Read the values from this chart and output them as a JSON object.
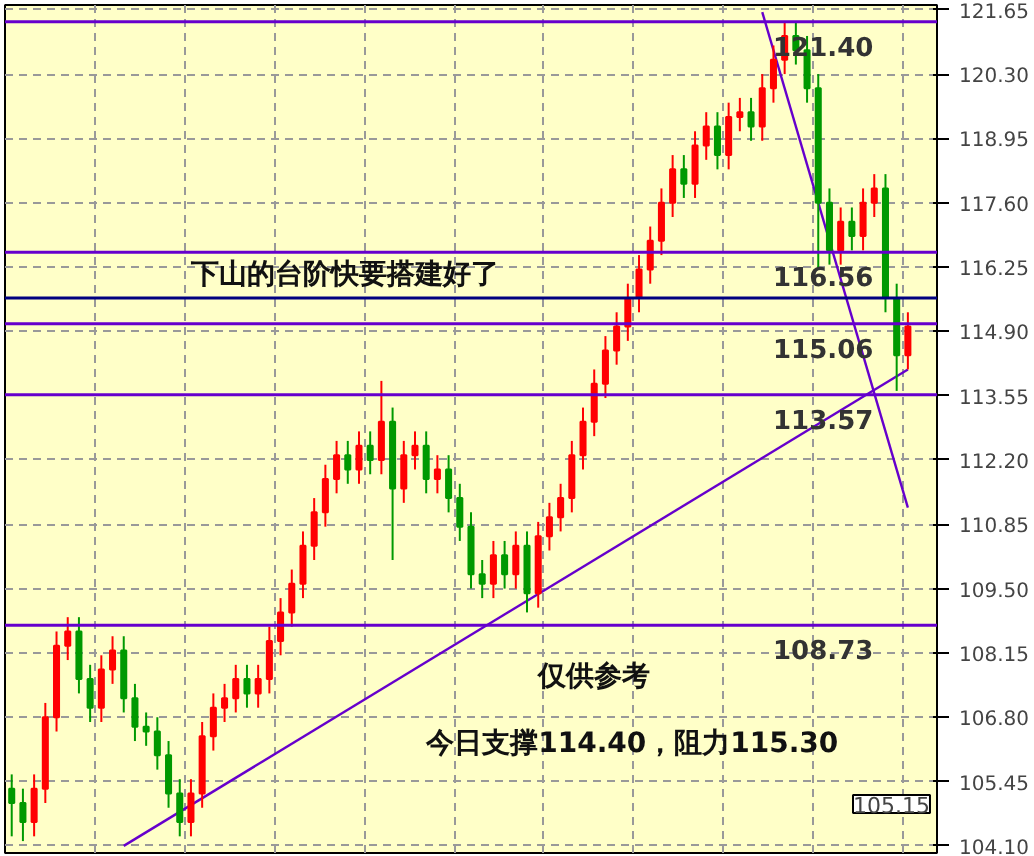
{
  "chart_data": {
    "type": "candlestick",
    "categories": [
      null,
      null,
      null,
      null,
      null,
      null,
      null,
      null,
      null,
      null,
      null,
      null,
      null,
      null,
      null,
      null,
      null,
      null,
      null,
      null,
      null,
      null,
      null,
      null,
      null,
      null,
      null,
      null,
      null,
      null,
      null,
      null,
      null,
      null,
      null,
      null,
      null,
      null,
      null,
      null,
      null,
      null,
      null,
      null,
      null,
      null,
      null,
      null,
      null,
      null,
      null,
      null,
      null,
      null,
      null,
      null,
      null,
      null,
      null,
      null,
      null,
      null,
      null,
      null,
      null,
      null,
      null,
      null,
      null,
      null,
      null,
      null,
      null,
      null,
      null,
      null,
      null,
      null,
      null,
      null,
      null
    ],
    "ohlc": [
      [
        105.3,
        105.6,
        104.3,
        105.0
      ],
      [
        105.0,
        105.3,
        104.2,
        104.6
      ],
      [
        104.6,
        105.6,
        104.3,
        105.3
      ],
      [
        105.3,
        107.1,
        105.0,
        106.8
      ],
      [
        106.8,
        108.6,
        106.5,
        108.3
      ],
      [
        108.3,
        108.9,
        108.0,
        108.6
      ],
      [
        108.6,
        108.9,
        107.3,
        107.6
      ],
      [
        107.6,
        107.9,
        106.7,
        107.0
      ],
      [
        107.0,
        108.1,
        106.7,
        107.8
      ],
      [
        107.8,
        108.5,
        107.5,
        108.2
      ],
      [
        108.2,
        108.5,
        106.9,
        107.2
      ],
      [
        107.2,
        107.5,
        106.3,
        106.6
      ],
      [
        106.6,
        106.9,
        106.2,
        106.5
      ],
      [
        106.5,
        106.8,
        105.7,
        106.0
      ],
      [
        106.0,
        106.3,
        104.9,
        105.2
      ],
      [
        105.2,
        105.5,
        104.3,
        104.6
      ],
      [
        104.6,
        105.5,
        104.3,
        105.2
      ],
      [
        105.2,
        106.7,
        104.9,
        106.4
      ],
      [
        106.4,
        107.3,
        106.1,
        107.0
      ],
      [
        107.0,
        107.5,
        106.7,
        107.2
      ],
      [
        107.2,
        107.9,
        106.9,
        107.6
      ],
      [
        107.6,
        107.9,
        107.0,
        107.3
      ],
      [
        107.3,
        107.9,
        107.0,
        107.6
      ],
      [
        107.6,
        108.7,
        107.3,
        108.4
      ],
      [
        108.4,
        109.3,
        108.1,
        109.0
      ],
      [
        109.0,
        109.9,
        108.7,
        109.6
      ],
      [
        109.6,
        110.7,
        109.3,
        110.4
      ],
      [
        110.4,
        111.4,
        110.1,
        111.1
      ],
      [
        111.1,
        112.1,
        110.8,
        111.8
      ],
      [
        111.8,
        112.6,
        111.5,
        112.3
      ],
      [
        112.3,
        112.6,
        111.7,
        112.0
      ],
      [
        112.0,
        112.8,
        111.7,
        112.5
      ],
      [
        112.5,
        112.8,
        111.9,
        112.2
      ],
      [
        112.2,
        113.86,
        111.9,
        113.0
      ],
      [
        113.0,
        113.3,
        110.1,
        111.6
      ],
      [
        111.6,
        112.6,
        111.3,
        112.3
      ],
      [
        112.3,
        112.8,
        112.0,
        112.5
      ],
      [
        112.5,
        112.8,
        111.5,
        111.8
      ],
      [
        111.8,
        112.3,
        111.5,
        112.0
      ],
      [
        112.0,
        112.3,
        111.1,
        111.4
      ],
      [
        111.4,
        111.7,
        110.5,
        110.8
      ],
      [
        110.8,
        111.1,
        109.5,
        109.8
      ],
      [
        109.8,
        110.1,
        109.3,
        109.6
      ],
      [
        109.6,
        110.5,
        109.3,
        110.2
      ],
      [
        110.2,
        110.5,
        109.5,
        109.8
      ],
      [
        109.8,
        110.7,
        109.5,
        110.4
      ],
      [
        110.4,
        110.7,
        109.0,
        109.4
      ],
      [
        109.4,
        110.9,
        109.1,
        110.6
      ],
      [
        110.6,
        111.3,
        110.3,
        111.0
      ],
      [
        111.0,
        111.7,
        110.7,
        111.4
      ],
      [
        111.4,
        112.6,
        111.1,
        112.3
      ],
      [
        112.3,
        113.3,
        112.0,
        113.0
      ],
      [
        113.0,
        114.1,
        112.7,
        113.8
      ],
      [
        113.8,
        114.8,
        113.5,
        114.5
      ],
      [
        114.5,
        115.3,
        114.2,
        115.0
      ],
      [
        115.0,
        115.9,
        114.7,
        115.6
      ],
      [
        115.6,
        116.5,
        115.3,
        116.2
      ],
      [
        116.2,
        117.1,
        115.9,
        116.8
      ],
      [
        116.8,
        117.9,
        116.5,
        117.6
      ],
      [
        117.6,
        118.6,
        117.3,
        118.3
      ],
      [
        118.3,
        118.6,
        117.7,
        118.0
      ],
      [
        118.0,
        119.1,
        117.7,
        118.8
      ],
      [
        118.8,
        119.5,
        118.5,
        119.2
      ],
      [
        119.2,
        119.5,
        118.3,
        118.6
      ],
      [
        118.6,
        119.7,
        118.3,
        119.4
      ],
      [
        119.4,
        119.8,
        119.1,
        119.5
      ],
      [
        119.5,
        119.8,
        118.9,
        119.2
      ],
      [
        119.2,
        120.3,
        118.9,
        120.0
      ],
      [
        120.0,
        120.9,
        119.7,
        120.6
      ],
      [
        120.6,
        121.4,
        120.3,
        121.1
      ],
      [
        121.1,
        121.4,
        120.5,
        120.8
      ],
      [
        120.8,
        121.1,
        119.7,
        120.0
      ],
      [
        120.0,
        120.3,
        116.2,
        117.6
      ],
      [
        117.6,
        117.9,
        116.3,
        116.6
      ],
      [
        116.6,
        117.5,
        116.3,
        117.2
      ],
      [
        117.2,
        117.5,
        116.6,
        116.9
      ],
      [
        116.9,
        117.9,
        116.6,
        117.6
      ],
      [
        117.6,
        118.2,
        117.3,
        117.9
      ],
      [
        117.9,
        118.2,
        115.3,
        115.6
      ],
      [
        115.6,
        115.9,
        113.65,
        114.4
      ],
      [
        114.4,
        115.3,
        114.1,
        115.0
      ]
    ],
    "series": [
      {
        "type": "line",
        "color": "#6600cc",
        "values": [
          null,
          null,
          null,
          null,
          null,
          null,
          null,
          null,
          null,
          null,
          104.1,
          null,
          null,
          null,
          null,
          null,
          null,
          null,
          null,
          null,
          null,
          null,
          null,
          null,
          null,
          null,
          null,
          null,
          null,
          null,
          null,
          null,
          null,
          null,
          null,
          null,
          null,
          null,
          null,
          null,
          null,
          null,
          null,
          null,
          null,
          null,
          null,
          null,
          null,
          null,
          null,
          null,
          null,
          null,
          null,
          null,
          null,
          null,
          null,
          null,
          null,
          null,
          null,
          null,
          null,
          null,
          null,
          null,
          null,
          null,
          null,
          null,
          null,
          null,
          null,
          null,
          null,
          null,
          null,
          null,
          114.1
        ]
      },
      {
        "type": "line",
        "color": "#6600cc",
        "values": [
          null,
          null,
          null,
          null,
          null,
          null,
          null,
          null,
          null,
          null,
          null,
          null,
          null,
          null,
          null,
          null,
          null,
          null,
          null,
          null,
          null,
          null,
          null,
          null,
          null,
          null,
          null,
          null,
          null,
          null,
          null,
          null,
          null,
          null,
          null,
          null,
          null,
          null,
          null,
          null,
          null,
          null,
          null,
          null,
          null,
          null,
          null,
          null,
          null,
          null,
          null,
          null,
          null,
          null,
          null,
          null,
          null,
          null,
          null,
          null,
          null,
          null,
          null,
          null,
          null,
          null,
          null,
          121.6,
          null,
          null,
          null,
          null,
          null,
          null,
          null,
          null,
          null,
          null,
          null,
          null,
          111.2
        ]
      }
    ],
    "ylim": [
      103.95,
      121.75
    ],
    "yticks": [
      {
        "value": 104.1,
        "label": "104.10"
      },
      {
        "value": 105.45,
        "label": "105.45"
      },
      {
        "value": 106.8,
        "label": "106.80"
      },
      {
        "value": 108.15,
        "label": "108.15"
      },
      {
        "value": 109.5,
        "label": "109.50"
      },
      {
        "value": 110.85,
        "label": "110.85"
      },
      {
        "value": 112.2,
        "label": "112.20"
      },
      {
        "value": 113.55,
        "label": "113.55"
      },
      {
        "value": 114.9,
        "label": "114.90"
      },
      {
        "value": 116.25,
        "label": "116.25"
      },
      {
        "value": 117.6,
        "label": "117.60"
      },
      {
        "value": 118.95,
        "label": "118.95"
      },
      {
        "value": 120.3,
        "label": "120.30"
      },
      {
        "value": 121.65,
        "label": "121.65"
      }
    ],
    "tick_labels": "y",
    "grid": true,
    "ref_lines": [
      {
        "axis": "y",
        "value": 121.4,
        "label": "121.40",
        "color": "#6600cc"
      },
      {
        "axis": "y",
        "value": 116.56,
        "label": "116.56",
        "color": "#6600cc"
      },
      {
        "axis": "y",
        "value": 115.6,
        "color": "#000080"
      },
      {
        "axis": "y",
        "value": 115.06,
        "label": "115.06",
        "color": "#6600cc"
      },
      {
        "axis": "y",
        "value": 113.57,
        "label": "113.57",
        "color": "#6600cc"
      },
      {
        "axis": "y",
        "value": 108.73,
        "label": "108.73",
        "color": "#6600cc"
      }
    ],
    "annotations": [
      "下山的台阶快要搭建好了",
      "仅供参考",
      "今日支撑114.40，阻力115.30",
      "105.15"
    ]
  }
}
